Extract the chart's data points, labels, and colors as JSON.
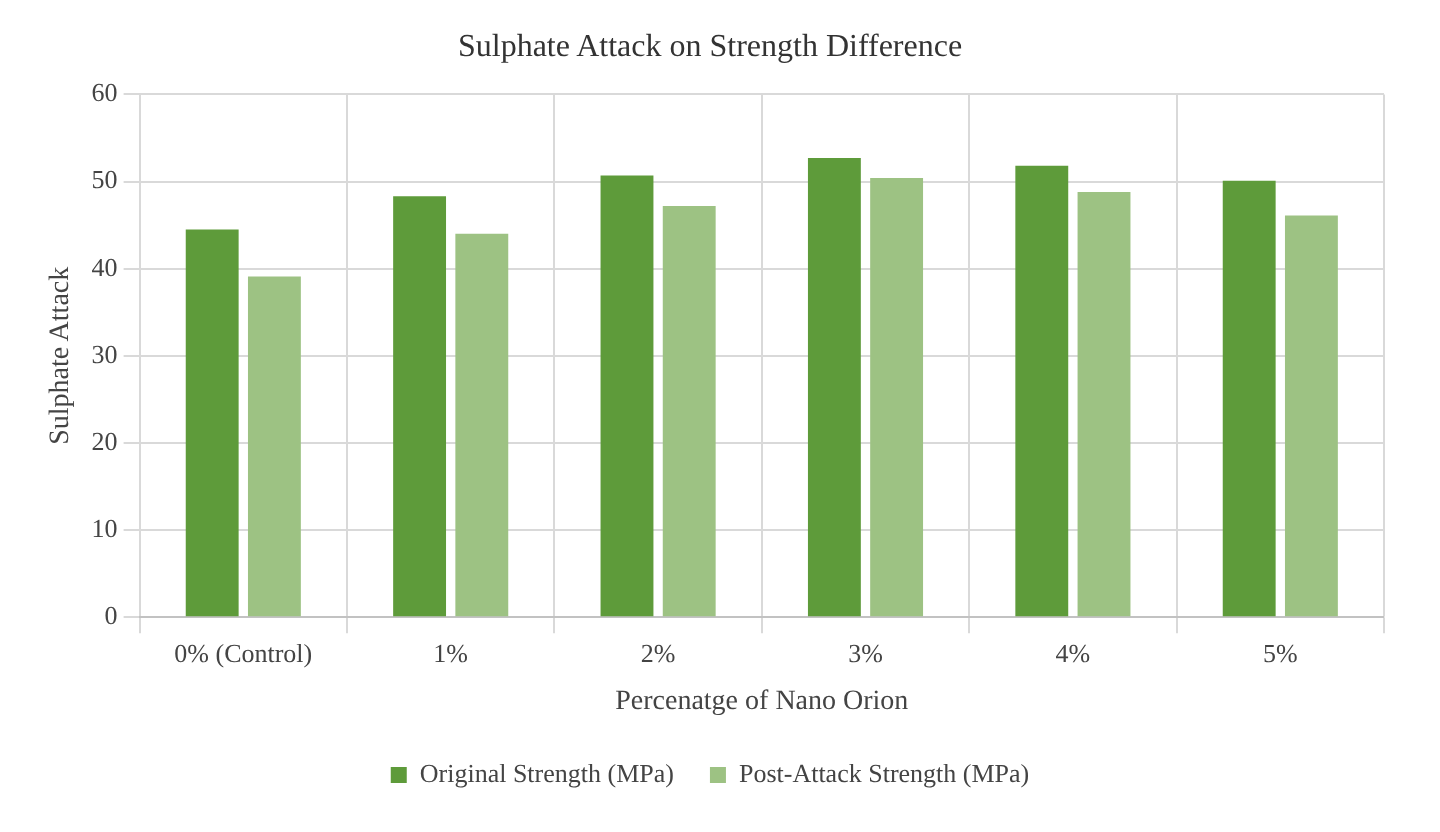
{
  "chart_data": {
    "type": "bar",
    "title": "Sulphate Attack on Strength Difference",
    "xlabel": "Percenatge of Nano Orion",
    "ylabel": "Sulphate Attack",
    "categories": [
      "0% (Control)",
      "1%",
      "2%",
      "3%",
      "4%",
      "5%"
    ],
    "series": [
      {
        "name": "Original Strength (MPa)",
        "color": "#5e9b3a",
        "values": [
          44.5,
          48.3,
          50.7,
          52.7,
          51.8,
          50.1
        ]
      },
      {
        "name": "Post-Attack Strength (MPa)",
        "color": "#9dc283",
        "values": [
          39.1,
          44.0,
          47.2,
          50.4,
          48.8,
          46.1
        ]
      }
    ],
    "ylim": [
      0,
      60
    ],
    "yticks": [
      0,
      10,
      20,
      30,
      40,
      50,
      60
    ],
    "grid": true,
    "legend": "bottom"
  }
}
